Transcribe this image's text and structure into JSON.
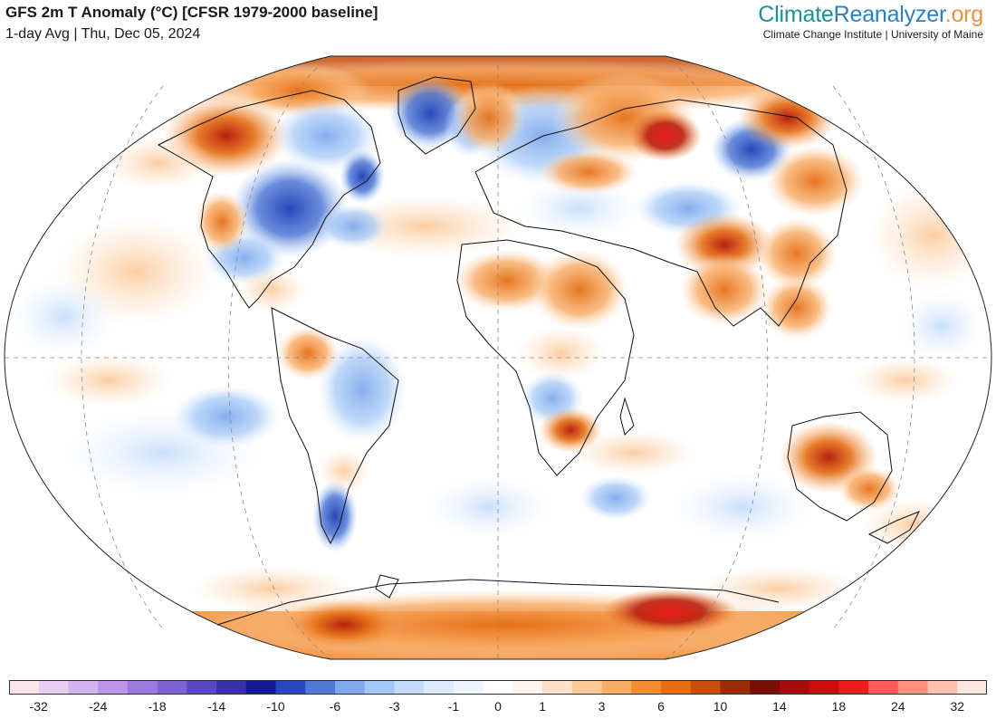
{
  "header": {
    "title": "GFS 2m T Anomaly (°C) [CFSR 1979-2000 baseline]",
    "subtitle": "1-day Avg | Thu, Dec 05, 2024"
  },
  "brand": {
    "logo_part1": "Climate",
    "logo_part2": "Reanalyzer",
    "logo_part3": ".org",
    "tagline": "Climate Change Institute | University of Maine"
  },
  "colors": {
    "ocean_neutral": "#ffffff",
    "cold_light": "#cfe4fb",
    "cold_mid": "#8ec1f2",
    "cold_strong": "#3a62c2",
    "warm_light": "#fdd9b5",
    "warm_mid": "#f4a260",
    "warm_strong": "#e07318",
    "warm_extreme": "#b8200f",
    "coastline": "#111111"
  },
  "colorbar": {
    "swatches": [
      "#fde3ec",
      "#e8cdf1",
      "#d3b3ee",
      "#bc95e8",
      "#9e7ae0",
      "#7d63d3",
      "#5948c2",
      "#3a30a8",
      "#131c92",
      "#2748b8",
      "#5079d6",
      "#7fa9ec",
      "#a3c7f6",
      "#c2dcfa",
      "#dbebfc",
      "#eef5fe",
      "#ffffff",
      "#fff3ea",
      "#fde1c8",
      "#fbc898",
      "#f8ac66",
      "#f48e36",
      "#e56e14",
      "#c84e0b",
      "#9a2d08",
      "#7a0d06",
      "#a50d0d",
      "#cc0d0d",
      "#ee1b1b",
      "#ff5b5b",
      "#ff9080",
      "#ffc0b0",
      "#ffe6e0"
    ],
    "labels": [
      "-32",
      "-24",
      "-18",
      "-14",
      "-10",
      "-6",
      "-3",
      "-1",
      "0",
      "1",
      "3",
      "6",
      "10",
      "14",
      "18",
      "24",
      "32"
    ]
  }
}
